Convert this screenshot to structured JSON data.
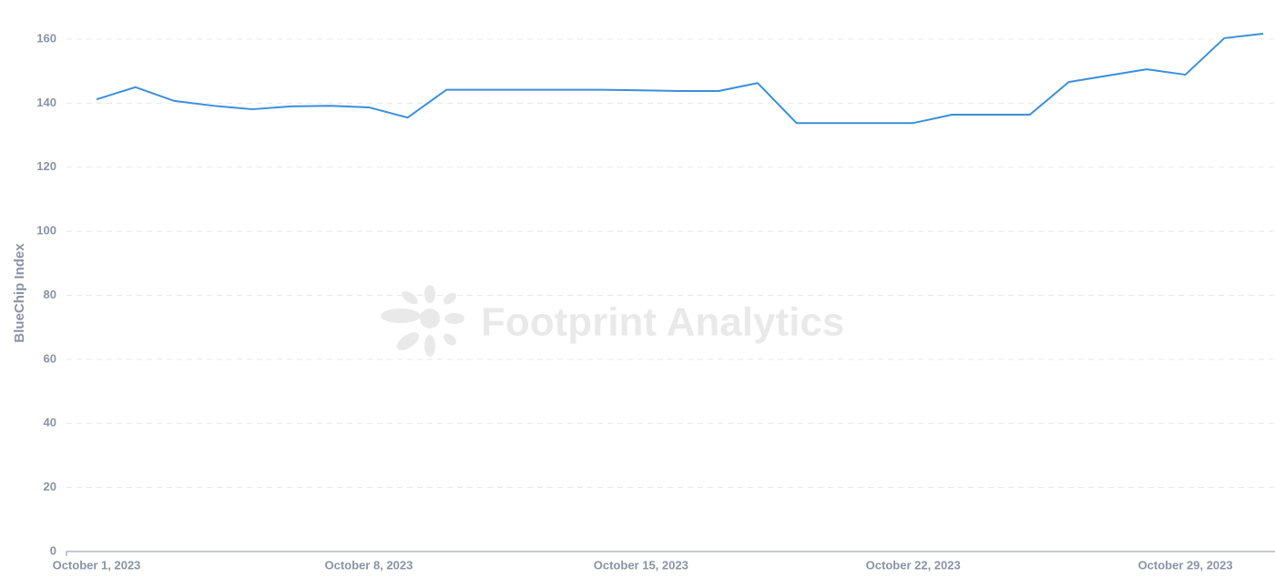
{
  "chart_data": {
    "type": "line",
    "y_label": "BlueChip Index",
    "watermark": "Footprint Analytics",
    "categories": [
      "October 1, 2023",
      null,
      null,
      null,
      null,
      null,
      null,
      "October 8, 2023",
      null,
      null,
      null,
      null,
      null,
      null,
      "October 15, 2023",
      null,
      null,
      null,
      null,
      null,
      null,
      "October 22, 2023",
      null,
      null,
      null,
      null,
      null,
      null,
      "October 29, 2023",
      null,
      null
    ],
    "series": [
      {
        "name": "BlueChip Index",
        "color": "#3a8fdc",
        "values": [
          141.2,
          145.0,
          140.7,
          139.2,
          138.1,
          139.0,
          139.2,
          138.7,
          135.5,
          144.2,
          144.2,
          144.2,
          144.2,
          144.2,
          144.0,
          143.8,
          143.8,
          146.3,
          133.8,
          133.8,
          133.8,
          133.8,
          136.4,
          136.4,
          136.4,
          146.6,
          148.6,
          150.6,
          148.9,
          160.3,
          161.7
        ]
      }
    ],
    "ylim": [
      0,
      160
    ],
    "yticks": [
      0,
      20,
      40,
      60,
      80,
      100,
      120,
      140,
      160
    ],
    "grid": true
  }
}
